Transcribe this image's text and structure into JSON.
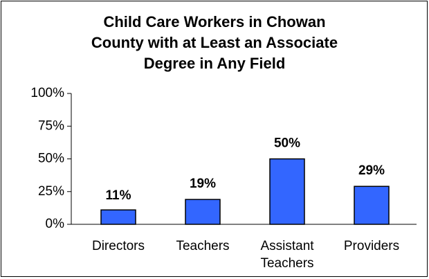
{
  "chart_data": {
    "type": "bar",
    "title": [
      "Child Care Workers in Chowan",
      "County with at Least an Associate",
      "Degree in Any Field"
    ],
    "categories": [
      "Directors",
      "Teachers",
      "Assistant Teachers",
      "Providers"
    ],
    "values": [
      11,
      19,
      50,
      29
    ],
    "value_labels": [
      "11%",
      "19%",
      "50%",
      "29%"
    ],
    "color": "#3366ff",
    "ylim": [
      0,
      100
    ],
    "yticks": [
      {
        "value": 0,
        "label": "0%"
      },
      {
        "value": 25,
        "label": "25%"
      },
      {
        "value": 50,
        "label": "50%"
      },
      {
        "value": 75,
        "label": "75%"
      },
      {
        "value": 100,
        "label": "100%"
      }
    ],
    "grid": false
  }
}
